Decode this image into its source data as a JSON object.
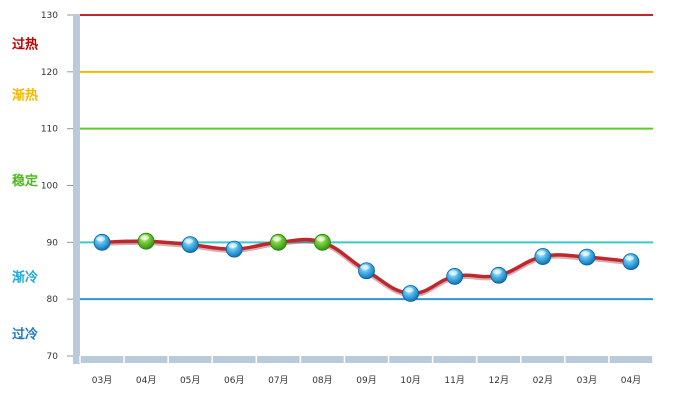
{
  "chart_data": {
    "type": "line",
    "title": "",
    "xlabel": "",
    "ylabel": "",
    "ylim": [
      70,
      130
    ],
    "yticks": [
      70,
      80,
      90,
      100,
      110,
      120,
      130
    ],
    "categories": [
      "03月",
      "04月",
      "05月",
      "06月",
      "07月",
      "08月",
      "09月",
      "10月",
      "11月",
      "12月",
      "02月",
      "03月",
      "04月"
    ],
    "series": [
      {
        "values": [
          90,
          90.2,
          89.6,
          88.8,
          90,
          90,
          85,
          81,
          84,
          84.2,
          87.5,
          87.4,
          86.6
        ],
        "marker_colors": [
          "blue",
          "green",
          "blue",
          "blue",
          "green",
          "green",
          "blue",
          "blue",
          "blue",
          "blue",
          "blue",
          "blue",
          "blue"
        ],
        "line_color": "#c0272d"
      }
    ],
    "threshold_lines": [
      {
        "value": 130,
        "color": "#c0272d"
      },
      {
        "value": 120,
        "color": "#f5b800"
      },
      {
        "value": 110,
        "color": "#5ecb2a"
      },
      {
        "value": 90,
        "color": "#3fc6d3"
      },
      {
        "value": 80,
        "color": "#2f95d8"
      }
    ],
    "zone_labels": [
      {
        "text": "过热",
        "value": 125,
        "color": "#c00000"
      },
      {
        "text": "渐热",
        "value": 116,
        "color": "#f5b800"
      },
      {
        "text": "稳定",
        "value": 101,
        "color": "#4fb81f"
      },
      {
        "text": "渐冷",
        "value": 84,
        "color": "#1fa8d8"
      },
      {
        "text": "过冷",
        "value": 74,
        "color": "#1f78c1"
      }
    ],
    "grid": false,
    "legend": "none"
  }
}
